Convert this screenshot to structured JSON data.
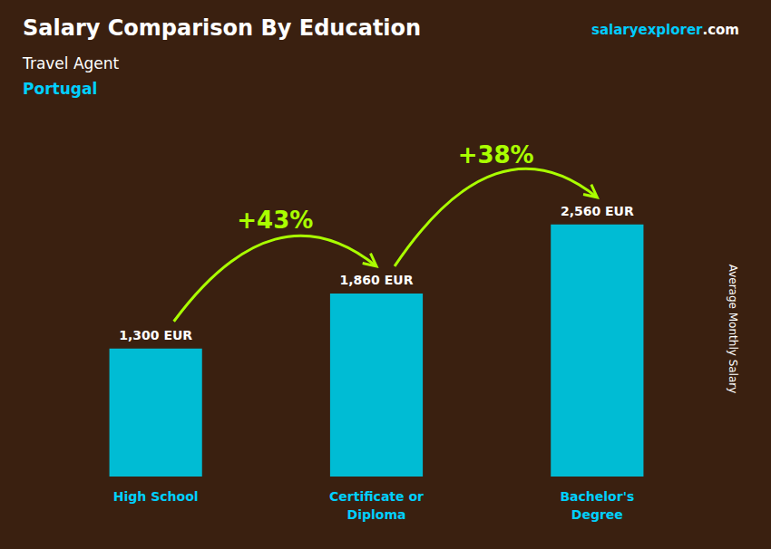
{
  "chart_data": {
    "type": "bar",
    "title": "Salary Comparison By Education",
    "subtitle": "Travel Agent",
    "ylabel": "Average Monthly Salary",
    "categories": [
      "High School",
      "Certificate or\nDiploma",
      "Bachelor's\nDegree"
    ],
    "values": [
      1300,
      1860,
      2560
    ],
    "value_labels": [
      "1,300 EUR",
      "1,860 EUR",
      "2,560 EUR"
    ],
    "data_labels": true,
    "color": "#00bcd4",
    "ylim": [
      0,
      3000
    ],
    "tick_labels": "x",
    "grid": false,
    "annotations": [
      {
        "text": "Portugal",
        "color": "#00d0ff"
      },
      {
        "parts": [
          {
            "text": "salary",
            "color": "#00ccff"
          },
          {
            "text": "explorer",
            "color": "#00ccff"
          },
          {
            "text": ".com",
            "color": "#ffffff"
          }
        ]
      },
      {
        "text": "+43%",
        "from": "High School",
        "to": "Certificate or\nDiploma",
        "color": "#aaff00"
      },
      {
        "text": "+38%",
        "from": "Certificate or\nDiploma",
        "to": "Bachelor's\nDegree",
        "color": "#aaff00"
      }
    ]
  }
}
